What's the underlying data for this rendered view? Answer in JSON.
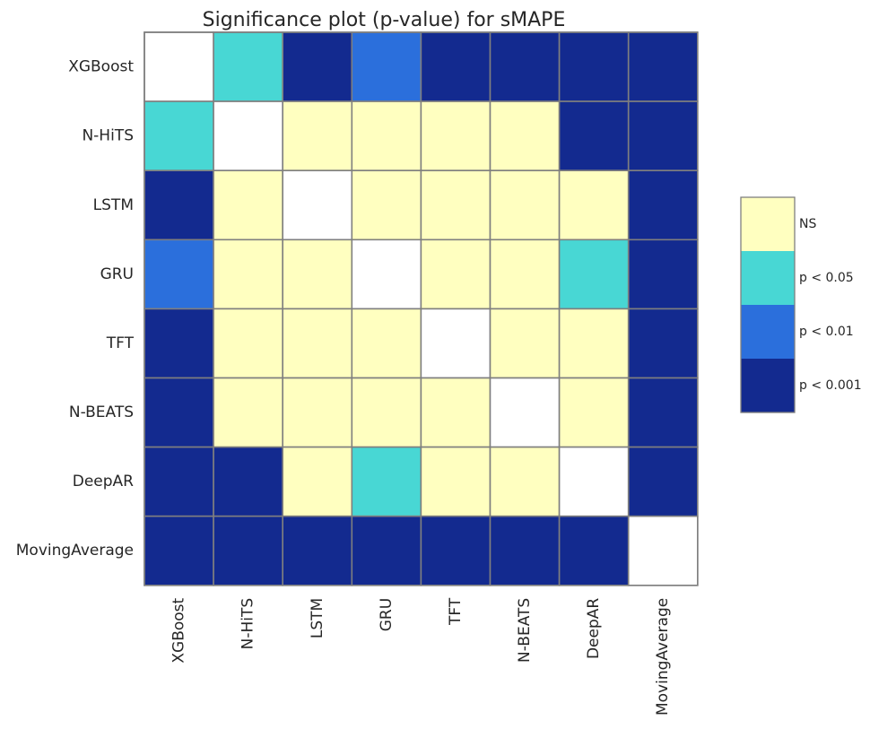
{
  "chart_data": {
    "type": "heatmap",
    "title": "Significance plot (p-value) for sMAPE",
    "rows": [
      "XGBoost",
      "N-HiTS",
      "LSTM",
      "GRU",
      "TFT",
      "N-BEATS",
      "DeepAR",
      "MovingAverage"
    ],
    "columns": [
      "XGBoost",
      "N-HiTS",
      "LSTM",
      "GRU",
      "TFT",
      "N-BEATS",
      "DeepAR",
      "MovingAverage"
    ],
    "matrix": [
      [
        "",
        "p < 0.05",
        "p < 0.001",
        "p < 0.01",
        "p < 0.001",
        "p < 0.001",
        "p < 0.001",
        "p < 0.001"
      ],
      [
        "p < 0.05",
        "",
        "NS",
        "NS",
        "NS",
        "NS",
        "p < 0.001",
        "p < 0.001"
      ],
      [
        "p < 0.001",
        "NS",
        "",
        "NS",
        "NS",
        "NS",
        "NS",
        "p < 0.001"
      ],
      [
        "p < 0.01",
        "NS",
        "NS",
        "",
        "NS",
        "NS",
        "p < 0.05",
        "p < 0.001"
      ],
      [
        "p < 0.001",
        "NS",
        "NS",
        "NS",
        "",
        "NS",
        "NS",
        "p < 0.001"
      ],
      [
        "p < 0.001",
        "NS",
        "NS",
        "NS",
        "NS",
        "",
        "NS",
        "p < 0.001"
      ],
      [
        "p < 0.001",
        "p < 0.001",
        "NS",
        "p < 0.05",
        "NS",
        "NS",
        "",
        "p < 0.001"
      ],
      [
        "p < 0.001",
        "p < 0.001",
        "p < 0.001",
        "p < 0.001",
        "p < 0.001",
        "p < 0.001",
        "p < 0.001",
        ""
      ]
    ],
    "legend": {
      "placement": "right",
      "entries": [
        {
          "label": "NS",
          "color": "#ffffc0"
        },
        {
          "label": "p < 0.05",
          "color": "#48d7d4"
        },
        {
          "label": "p < 0.01",
          "color": "#2b6fdc"
        },
        {
          "label": "p < 0.001",
          "color": "#132a8f"
        }
      ]
    },
    "diagonal_color": "#ffffff",
    "grid_color": "#7f7f7f"
  }
}
